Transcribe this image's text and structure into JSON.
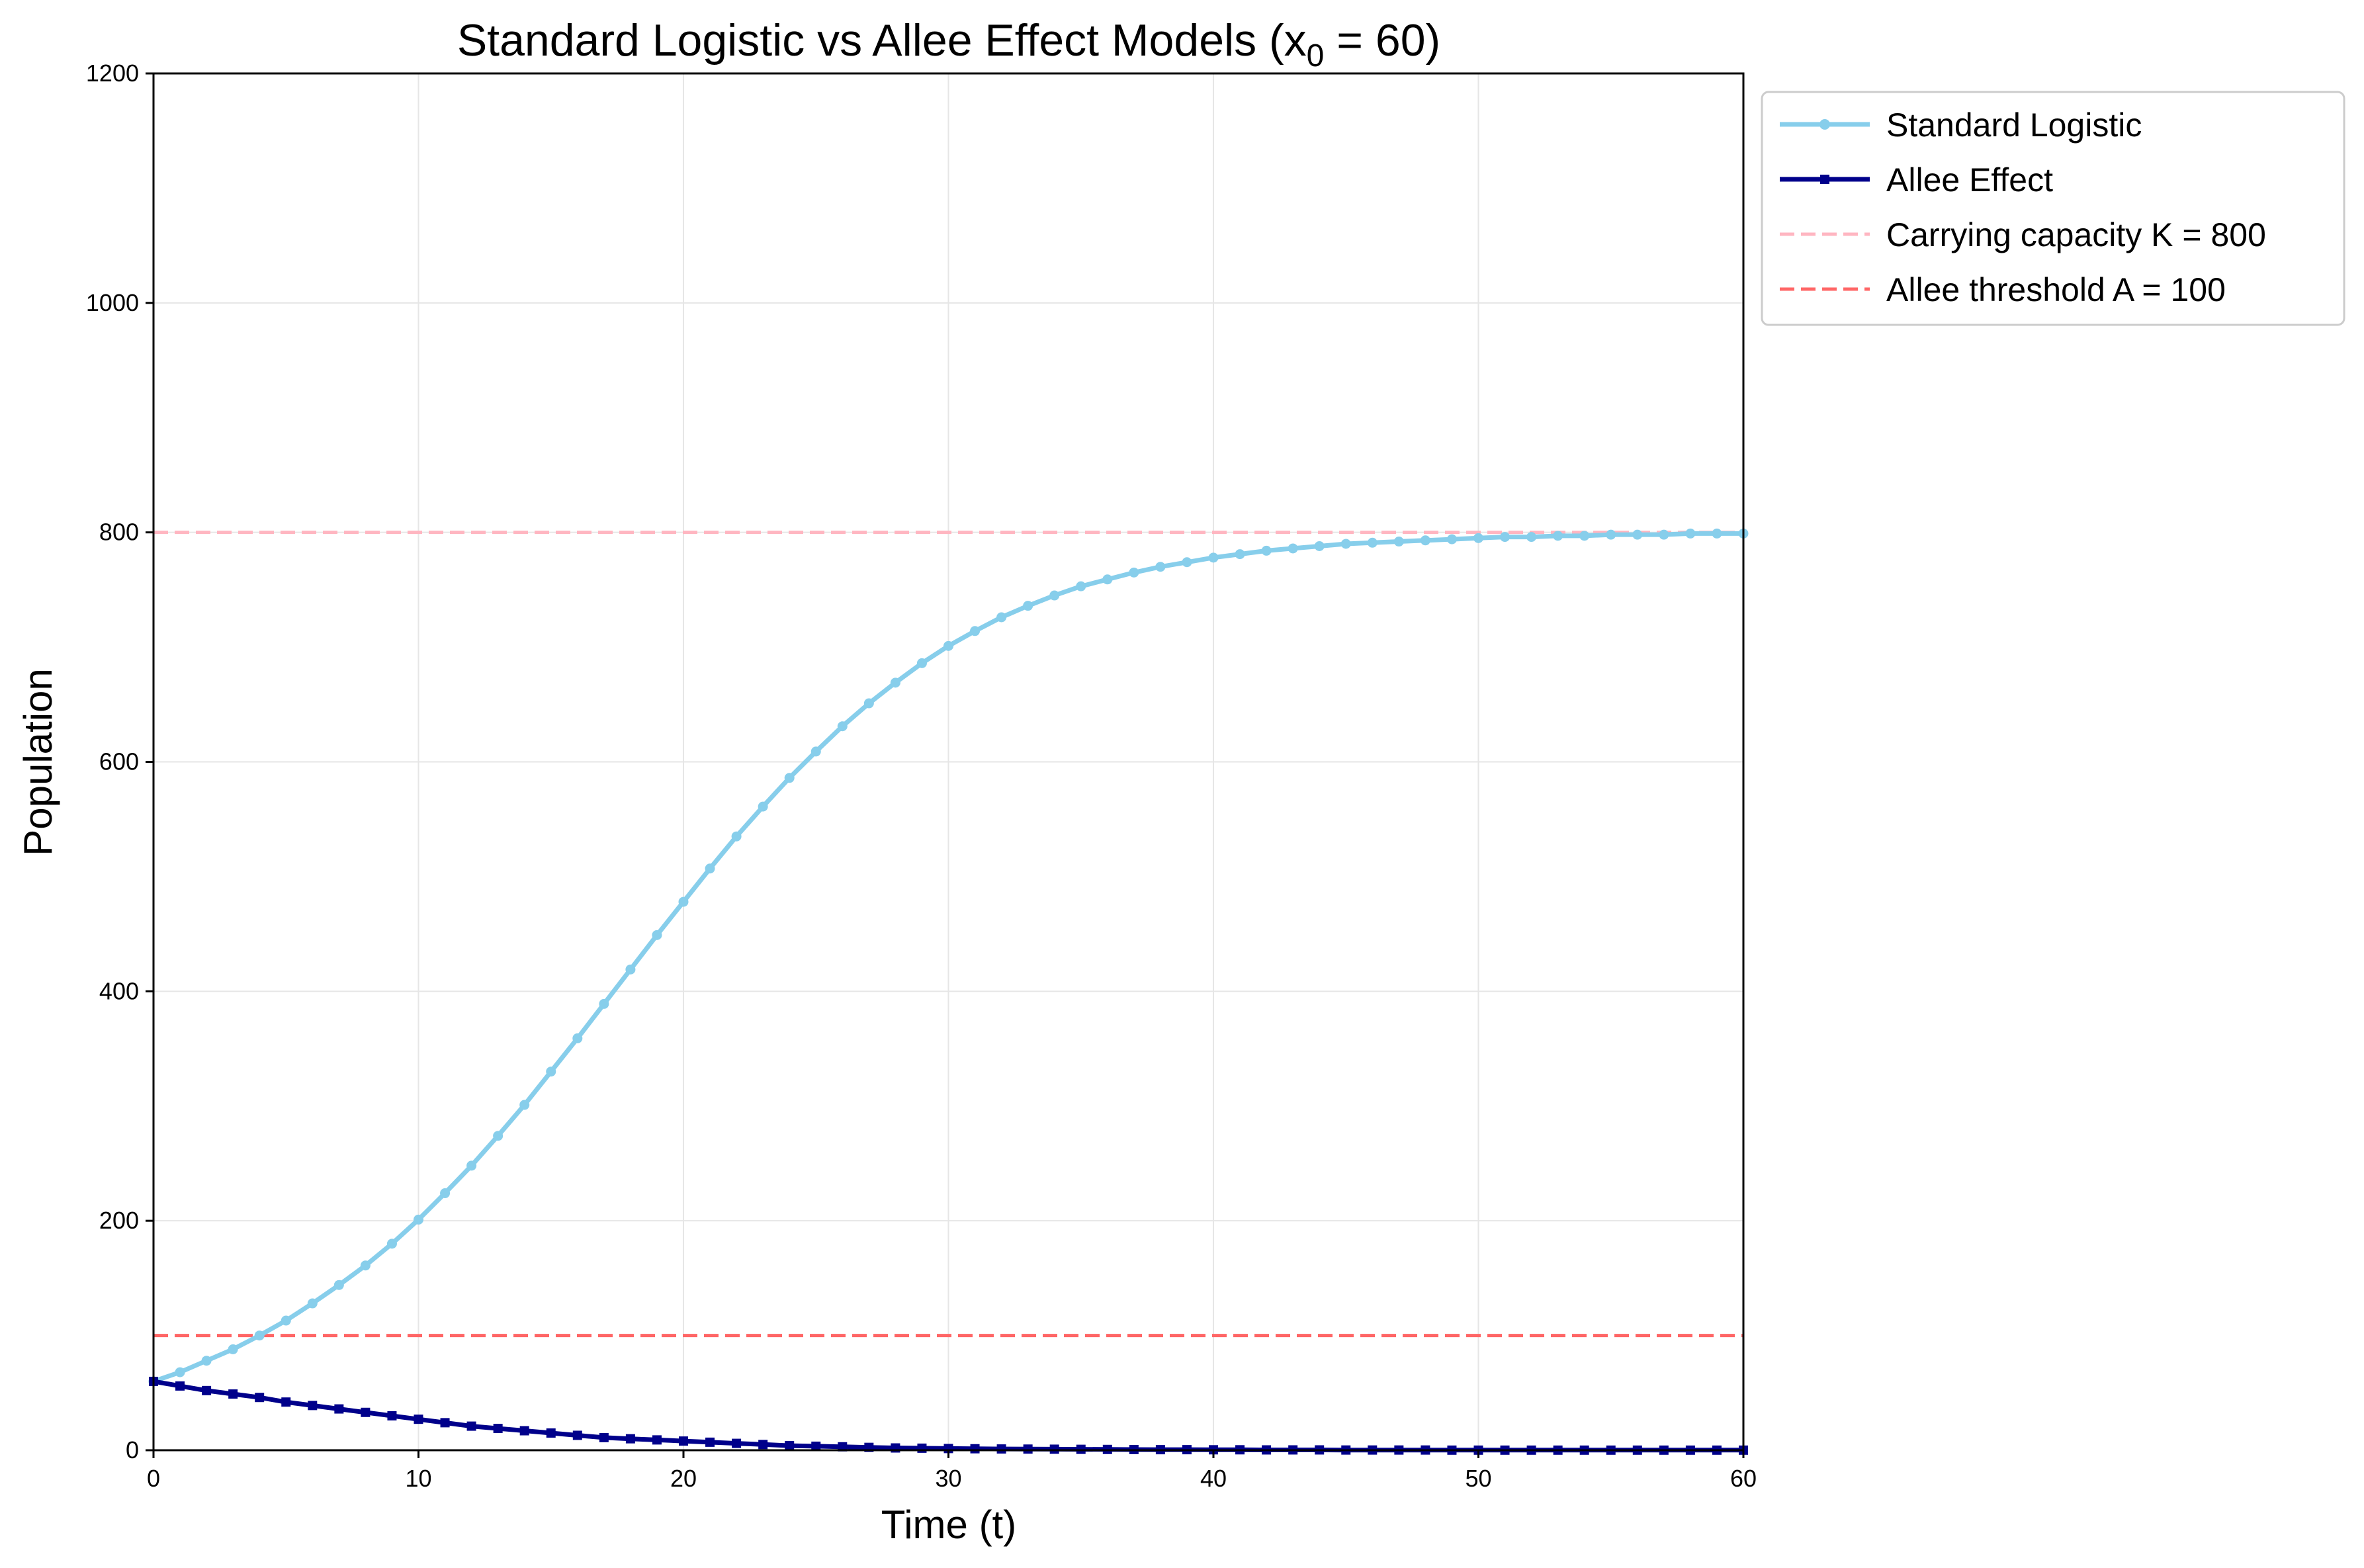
{
  "chart_data": {
    "type": "line",
    "title": "Standard Logistic vs Allee Effect Models (x",
    "title_sub": "0",
    "title_tail": " = 60)",
    "xlabel": "Time (t)",
    "ylabel": "Population",
    "xlim": [
      0,
      60
    ],
    "ylim": [
      0,
      1200
    ],
    "xticks": [
      0,
      10,
      20,
      30,
      40,
      50,
      60
    ],
    "yticks": [
      0,
      200,
      400,
      600,
      800,
      1000,
      1200
    ],
    "grid": true,
    "legend_position": "outside-top-right",
    "x": [
      0,
      1,
      2,
      3,
      4,
      5,
      6,
      7,
      8,
      9,
      10,
      11,
      12,
      13,
      14,
      15,
      16,
      17,
      18,
      19,
      20,
      21,
      22,
      23,
      24,
      25,
      26,
      27,
      28,
      29,
      30,
      31,
      32,
      33,
      34,
      35,
      36,
      37,
      38,
      39,
      40,
      41,
      42,
      43,
      44,
      45,
      46,
      47,
      48,
      49,
      50,
      51,
      52,
      53,
      54,
      55,
      56,
      57,
      58,
      59,
      60
    ],
    "series": [
      {
        "name": "Standard Logistic",
        "color": "#87ceeb",
        "marker": "circle",
        "values": [
          60,
          68,
          78,
          88,
          100,
          113,
          128,
          144,
          161,
          180,
          201,
          224,
          248,
          274,
          301,
          330,
          359,
          389,
          419,
          449,
          478,
          507,
          535,
          561,
          586,
          609,
          631,
          651,
          669,
          686,
          701,
          714,
          726,
          736,
          745,
          753,
          759,
          765,
          770,
          774,
          778,
          781,
          784,
          786,
          788,
          790,
          791,
          792,
          793,
          794,
          795,
          796,
          796,
          797,
          797,
          798,
          798,
          798,
          799,
          799,
          799
        ]
      },
      {
        "name": "Allee Effect",
        "color": "#00008b",
        "marker": "square",
        "values": [
          60,
          56,
          52,
          49,
          46,
          42,
          39,
          36,
          33,
          30,
          27,
          24,
          21,
          19,
          17,
          15,
          13,
          11,
          10,
          9,
          8,
          7,
          6,
          5,
          4,
          3.5,
          3,
          2.5,
          2,
          1.8,
          1.5,
          1.3,
          1.1,
          1,
          0.9,
          0.8,
          0.7,
          0.6,
          0.5,
          0.5,
          0.4,
          0.4,
          0.3,
          0.3,
          0.3,
          0.2,
          0.2,
          0.2,
          0.2,
          0.1,
          0.1,
          0.1,
          0.1,
          0.1,
          0.1,
          0.1,
          0.1,
          0.1,
          0.1,
          0.1,
          0.1
        ]
      }
    ],
    "hlines": [
      {
        "name": "Carrying capacity K = 800",
        "value": 800,
        "color": "#ffb6c1"
      },
      {
        "name": "Allee threshold A = 100",
        "value": 100,
        "color": "#ff6666"
      }
    ]
  }
}
